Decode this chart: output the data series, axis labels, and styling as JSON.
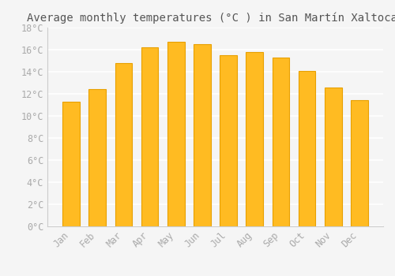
{
  "months": [
    "Jan",
    "Feb",
    "Mar",
    "Apr",
    "May",
    "Jun",
    "Jul",
    "Aug",
    "Sep",
    "Oct",
    "Nov",
    "Dec"
  ],
  "values": [
    11.3,
    12.4,
    14.8,
    16.2,
    16.7,
    16.5,
    15.5,
    15.8,
    15.3,
    14.1,
    12.6,
    11.4
  ],
  "bar_color": "#FFBB22",
  "bar_edge_color": "#E8A000",
  "title": "Average monthly temperatures (°C ) in San Martín Xaltocan",
  "ylim": [
    0,
    18
  ],
  "yticks": [
    0,
    2,
    4,
    6,
    8,
    10,
    12,
    14,
    16,
    18
  ],
  "ytick_labels": [
    "0°C",
    "2°C",
    "4°C",
    "6°C",
    "8°C",
    "10°C",
    "12°C",
    "14°C",
    "16°C",
    "18°C"
  ],
  "bg_color": "#f5f5f5",
  "grid_color": "#ffffff",
  "title_fontsize": 10,
  "tick_fontsize": 8.5,
  "tick_color": "#aaaaaa",
  "title_color": "#555555"
}
